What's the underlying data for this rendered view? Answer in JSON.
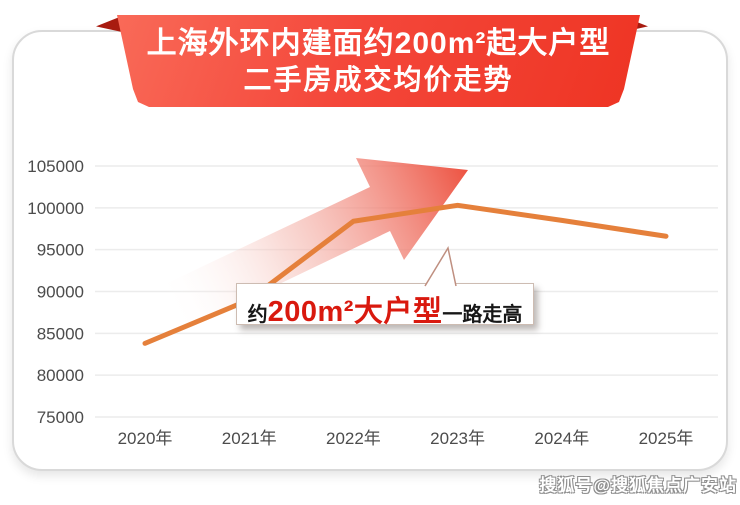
{
  "banner": {
    "title_line1": "上海外环内建面约200m²起大户型",
    "title_line2": "二手房成交均价走势"
  },
  "callout": {
    "prefix": "约",
    "highlight": "200m²大户型",
    "suffix": "一路走高"
  },
  "watermark": "搜狐号@搜狐焦点广安站",
  "chart_data": {
    "type": "line",
    "title": "上海外环内建面约200m²起大户型二手房成交均价走势",
    "categories": [
      "2020年",
      "2021年",
      "2022年",
      "2023年",
      "2024年",
      "2025年"
    ],
    "series": [
      {
        "name": "二手房成交均价",
        "values": [
          83800,
          89000,
          98400,
          100300,
          98500,
          96600
        ]
      }
    ],
    "ylim": [
      75000,
      105000
    ],
    "yticks": [
      75000,
      80000,
      85000,
      90000,
      95000,
      100000,
      105000
    ],
    "xlabel": "",
    "ylabel": "",
    "grid": "horizontal",
    "legend": "none"
  },
  "colors": {
    "banner_red": "#f4473a",
    "banner_fold_dark_red": "#a81b10",
    "line_orange": "#e5803b",
    "arrow_red": "#ec4a38",
    "callout_red": "#d9190e",
    "axis_text": "#4c4c4c",
    "gridline": "#ececec"
  }
}
